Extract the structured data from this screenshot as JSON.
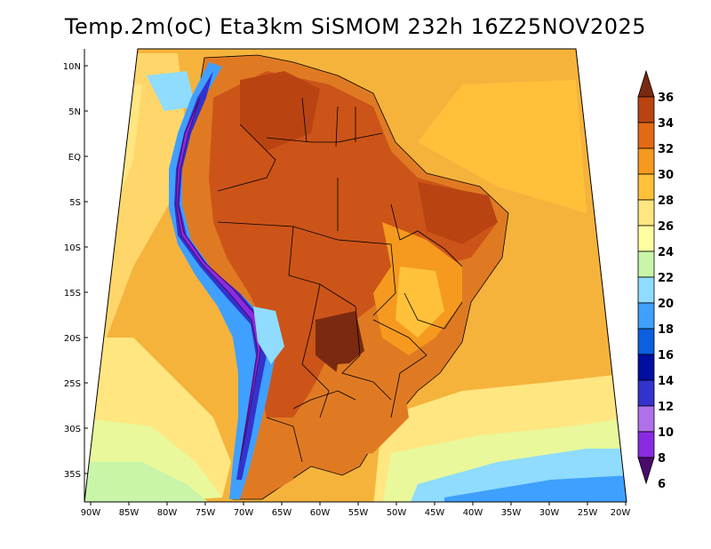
{
  "title": "Temp.2m(oC) Eta3km SiSMOM 232h 16Z25NOV2025",
  "map": {
    "lat_labels": [
      "10N",
      "5N",
      "EQ",
      "5S",
      "10S",
      "15S",
      "20S",
      "25S",
      "30S",
      "35S"
    ],
    "lon_labels": [
      "90W",
      "85W",
      "80W",
      "75W",
      "70W",
      "65W",
      "60W",
      "55W",
      "50W",
      "45W",
      "40W",
      "35W",
      "30W",
      "25W",
      "20W"
    ]
  },
  "colorbar": {
    "labels": [
      "6",
      "8",
      "10",
      "12",
      "14",
      "16",
      "18",
      "20",
      "22",
      "24",
      "26",
      "28",
      "30",
      "32",
      "34",
      "36"
    ],
    "colors": [
      "#4b0a6e",
      "#8a2be2",
      "#b070e8",
      "#3333cc",
      "#000fa0",
      "#0b5fe0",
      "#3fa0ff",
      "#8fdcff",
      "#c8f5a8",
      "#ffffa0",
      "#ffe680",
      "#ffc13a",
      "#f59a1e",
      "#e36a15",
      "#b94412",
      "#7a2a10"
    ]
  },
  "colors": {
    "ocean_warm": "#f5b33c",
    "ocean_mild": "#ffe680",
    "ocean_cool": "#e8f89a",
    "land_hot": "#cc5418",
    "land_warm": "#e07a22",
    "andes_cold": "#4040c8"
  }
}
